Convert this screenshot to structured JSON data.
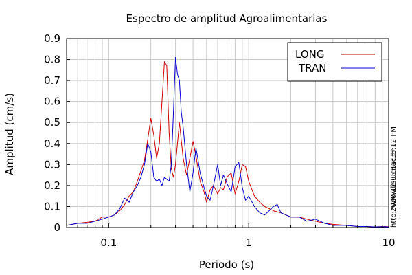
{
  "chart_data": {
    "type": "line",
    "title": "Espectro de amplitud Agroalimentarias",
    "xlabel": "Periodo (s)",
    "ylabel": "Amplitud (cm/s)",
    "xscale": "log",
    "xlim": [
      0.05,
      10
    ],
    "ylim": [
      0,
      0.9
    ],
    "grid": true,
    "legend_position": "top-right",
    "xticks": [
      {
        "value": 0.1,
        "label": "0.1"
      },
      {
        "value": 1,
        "label": "1"
      },
      {
        "value": 10,
        "label": "10"
      }
    ],
    "yticks": [
      {
        "value": 0,
        "label": "0"
      },
      {
        "value": 0.1,
        "label": "0.1"
      },
      {
        "value": 0.2,
        "label": "0.2"
      },
      {
        "value": 0.3,
        "label": "0.3"
      },
      {
        "value": 0.4,
        "label": "0.4"
      },
      {
        "value": 0.5,
        "label": "0.5"
      },
      {
        "value": 0.6,
        "label": "0.6"
      },
      {
        "value": 0.7,
        "label": "0.7"
      },
      {
        "value": 0.8,
        "label": "0.8"
      },
      {
        "value": 0.9,
        "label": "0.9"
      }
    ],
    "series": [
      {
        "name": "LONG",
        "color": "#cc0000",
        "x": [
          0.05,
          0.06,
          0.07,
          0.08,
          0.09,
          0.1,
          0.11,
          0.12,
          0.13,
          0.14,
          0.15,
          0.16,
          0.17,
          0.18,
          0.19,
          0.2,
          0.21,
          0.22,
          0.23,
          0.24,
          0.25,
          0.26,
          0.27,
          0.28,
          0.29,
          0.3,
          0.32,
          0.34,
          0.36,
          0.38,
          0.4,
          0.42,
          0.45,
          0.48,
          0.5,
          0.53,
          0.56,
          0.6,
          0.63,
          0.66,
          0.7,
          0.75,
          0.8,
          0.85,
          0.9,
          0.95,
          1.0,
          1.1,
          1.2,
          1.3,
          1.4,
          1.5,
          1.7,
          2.0,
          2.3,
          2.6,
          3.0,
          3.5,
          4.0,
          5.0,
          6.0,
          7.0,
          8.0,
          9.0,
          10.0
        ],
        "y": [
          0.01,
          0.02,
          0.025,
          0.03,
          0.05,
          0.05,
          0.06,
          0.08,
          0.11,
          0.15,
          0.17,
          0.22,
          0.27,
          0.32,
          0.42,
          0.52,
          0.44,
          0.33,
          0.4,
          0.6,
          0.79,
          0.77,
          0.45,
          0.28,
          0.24,
          0.3,
          0.5,
          0.33,
          0.25,
          0.33,
          0.41,
          0.34,
          0.22,
          0.17,
          0.12,
          0.18,
          0.2,
          0.16,
          0.19,
          0.18,
          0.24,
          0.26,
          0.16,
          0.22,
          0.3,
          0.29,
          0.22,
          0.15,
          0.12,
          0.1,
          0.09,
          0.08,
          0.07,
          0.05,
          0.05,
          0.04,
          0.03,
          0.02,
          0.015,
          0.01,
          0.005,
          0.005,
          0.003,
          0.005,
          0.004
        ]
      },
      {
        "name": "TRAN",
        "color": "#0000cc",
        "x": [
          0.05,
          0.06,
          0.07,
          0.08,
          0.09,
          0.1,
          0.11,
          0.12,
          0.13,
          0.14,
          0.15,
          0.16,
          0.17,
          0.18,
          0.19,
          0.2,
          0.21,
          0.22,
          0.23,
          0.24,
          0.25,
          0.26,
          0.27,
          0.28,
          0.29,
          0.3,
          0.31,
          0.32,
          0.33,
          0.34,
          0.36,
          0.38,
          0.4,
          0.42,
          0.45,
          0.48,
          0.5,
          0.53,
          0.56,
          0.6,
          0.63,
          0.66,
          0.7,
          0.75,
          0.8,
          0.85,
          0.9,
          0.95,
          1.0,
          1.1,
          1.2,
          1.3,
          1.4,
          1.5,
          1.6,
          1.7,
          2.0,
          2.3,
          2.6,
          3.0,
          3.5,
          4.0,
          5.0,
          6.0,
          7.0,
          8.0,
          9.0,
          10.0
        ],
        "y": [
          0.01,
          0.02,
          0.02,
          0.03,
          0.04,
          0.05,
          0.06,
          0.09,
          0.14,
          0.12,
          0.17,
          0.2,
          0.24,
          0.3,
          0.4,
          0.36,
          0.24,
          0.22,
          0.23,
          0.2,
          0.24,
          0.23,
          0.22,
          0.3,
          0.55,
          0.81,
          0.73,
          0.7,
          0.55,
          0.48,
          0.3,
          0.17,
          0.26,
          0.38,
          0.26,
          0.19,
          0.15,
          0.13,
          0.2,
          0.3,
          0.2,
          0.25,
          0.21,
          0.17,
          0.29,
          0.31,
          0.19,
          0.13,
          0.15,
          0.1,
          0.07,
          0.06,
          0.08,
          0.1,
          0.11,
          0.07,
          0.05,
          0.05,
          0.03,
          0.04,
          0.02,
          0.01,
          0.01,
          0.005,
          0.005,
          0.003,
          0.004,
          0.003
        ]
      }
    ],
    "side_text": [
      "2020-12-08 12:36:12 PM",
      "http://www.lis.ucr.ac.cr"
    ]
  }
}
